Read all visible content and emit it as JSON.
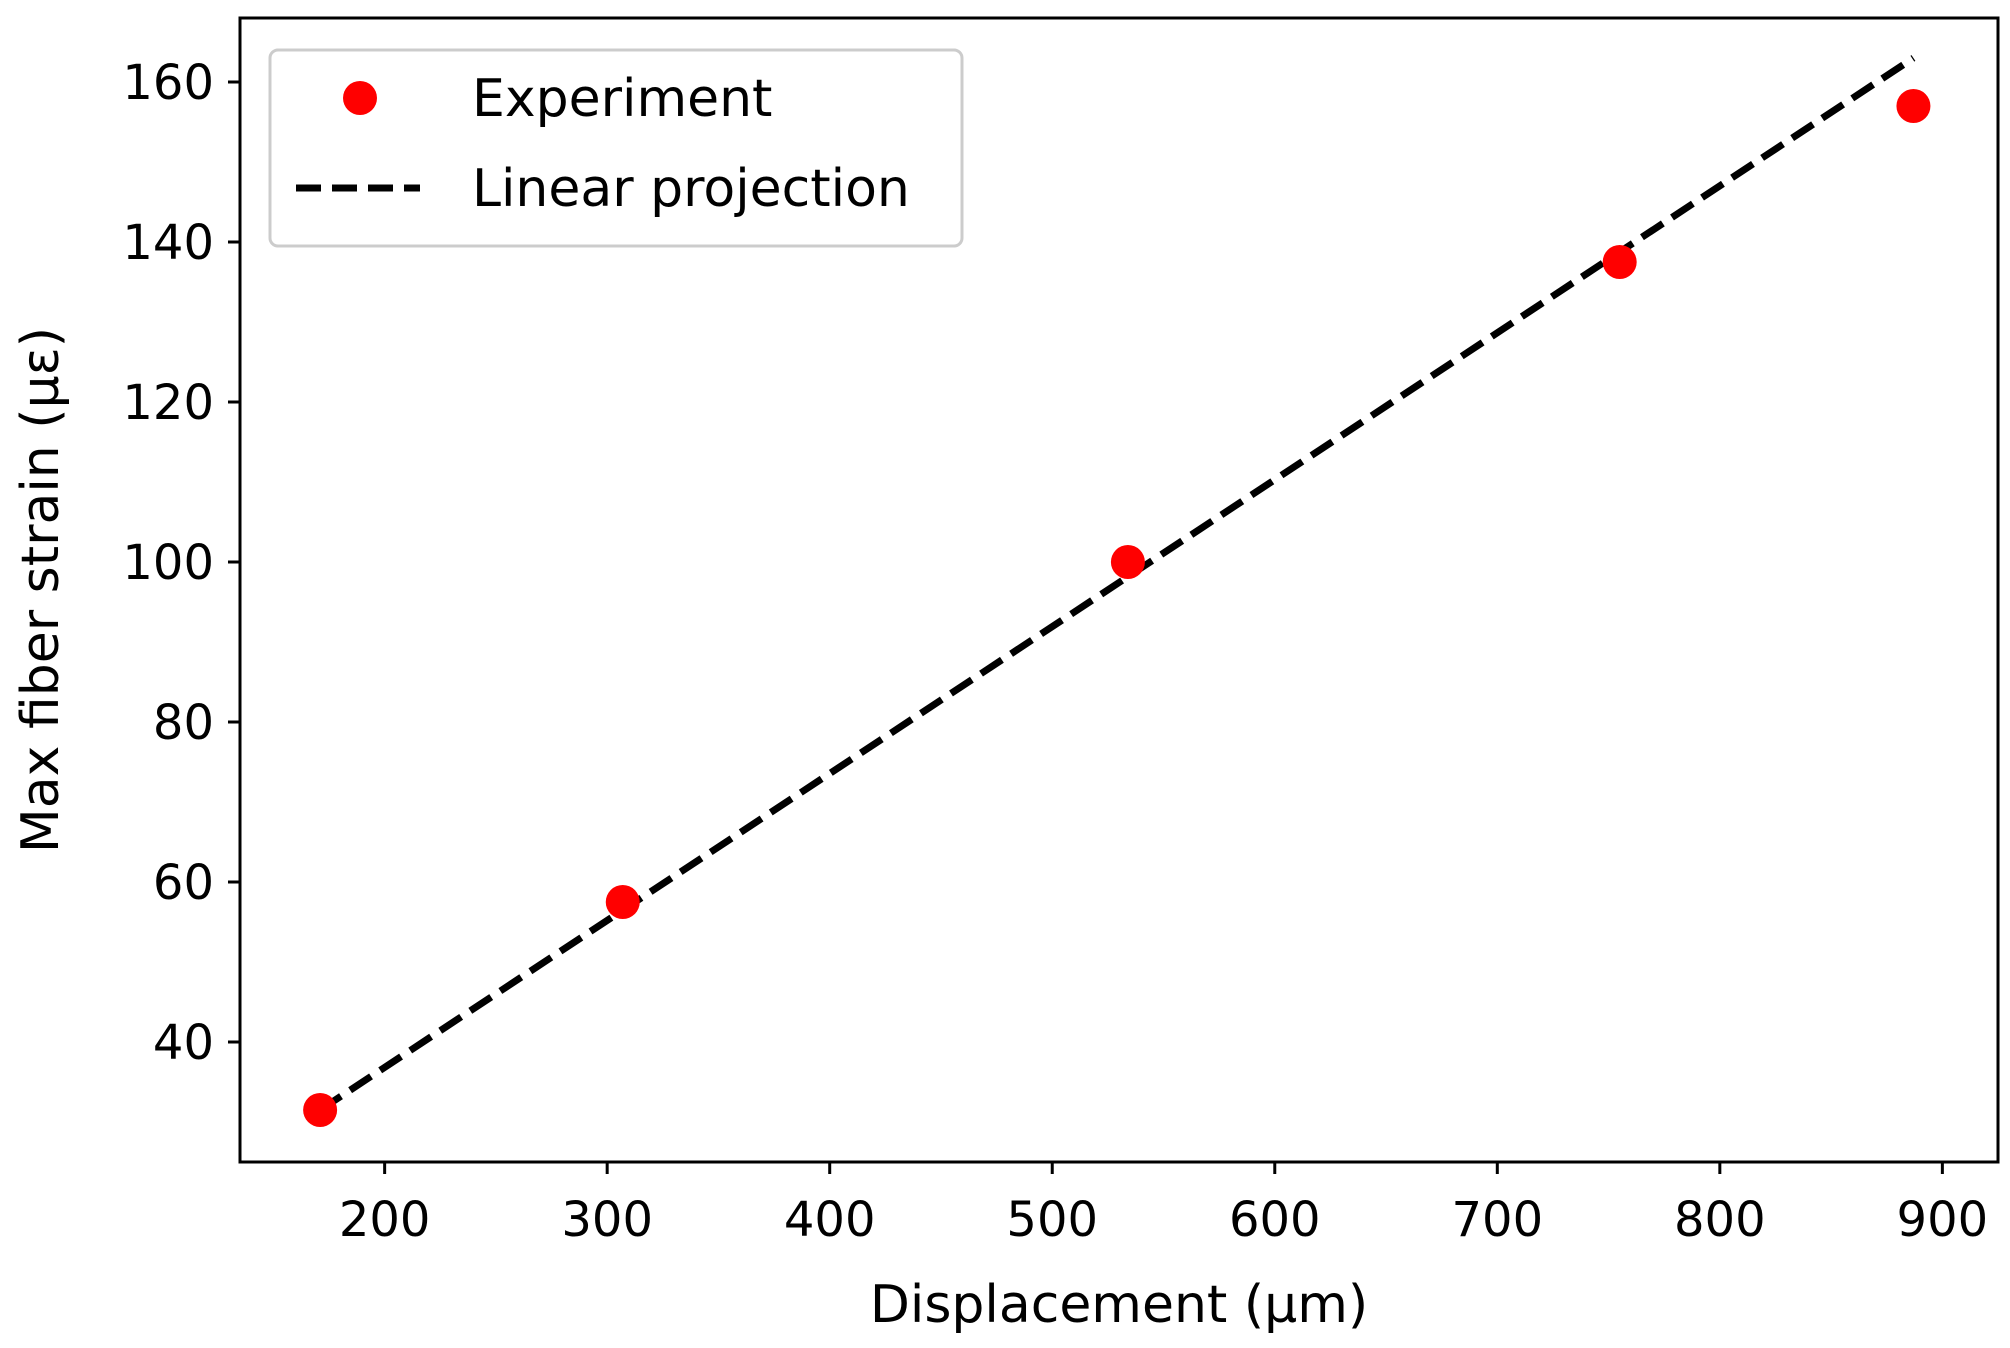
{
  "chart_data": {
    "type": "scatter",
    "title": "",
    "xlabel": "Displacement (μm)",
    "ylabel": "Max fiber strain (με)",
    "xlim": [
      135,
      925
    ],
    "ylim": [
      25,
      168
    ],
    "xticks": [
      200,
      300,
      400,
      500,
      600,
      700,
      800,
      900
    ],
    "yticks": [
      40,
      60,
      80,
      100,
      120,
      140,
      160
    ],
    "grid": false,
    "legend_position": "top-left",
    "series": [
      {
        "name": "Experiment",
        "kind": "scatter",
        "color": "#ff0000",
        "x": [
          171,
          307,
          534,
          755,
          887
        ],
        "y": [
          31.5,
          57.5,
          100,
          137.5,
          157
        ]
      },
      {
        "name": "Linear projection",
        "kind": "line",
        "style": "dashed",
        "color": "#000000",
        "x": [
          171,
          887
        ],
        "y": [
          31.5,
          163
        ]
      }
    ]
  }
}
